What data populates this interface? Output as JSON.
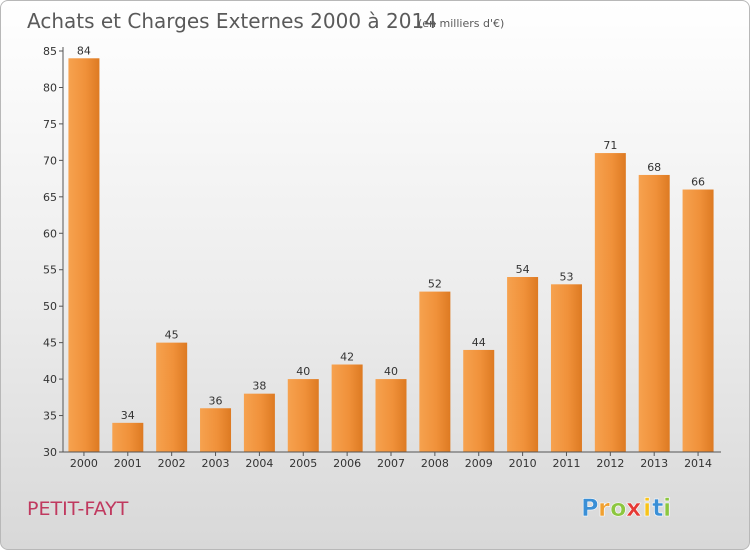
{
  "chart_data": {
    "type": "bar",
    "title": "Achats et Charges Externes 2000 à 2014",
    "subtitle": "(en milliers d'€)",
    "categories": [
      "2000",
      "2001",
      "2002",
      "2003",
      "2004",
      "2005",
      "2006",
      "2007",
      "2008",
      "2009",
      "2010",
      "2011",
      "2012",
      "2013",
      "2014"
    ],
    "values": [
      84,
      34,
      45,
      36,
      38,
      40,
      42,
      40,
      52,
      44,
      54,
      53,
      71,
      68,
      66
    ],
    "ylim": [
      30,
      85
    ],
    "yticks": [
      30,
      35,
      40,
      45,
      50,
      55,
      60,
      65,
      70,
      75,
      80,
      85
    ],
    "xlabel": "",
    "ylabel": "",
    "grid": false,
    "bar_color": "#f0913a",
    "bar_color_dark": "#d9741f"
  },
  "place_name": "PETIT-FAYT",
  "logo": {
    "letters": [
      "P",
      "r",
      "o",
      "x",
      "i",
      "t",
      "i"
    ],
    "colors": [
      "#3a8fd6",
      "#f0a030",
      "#8cc63f",
      "#e53935",
      "#f7c31a",
      "#3a8fd6",
      "#8cc63f"
    ]
  }
}
